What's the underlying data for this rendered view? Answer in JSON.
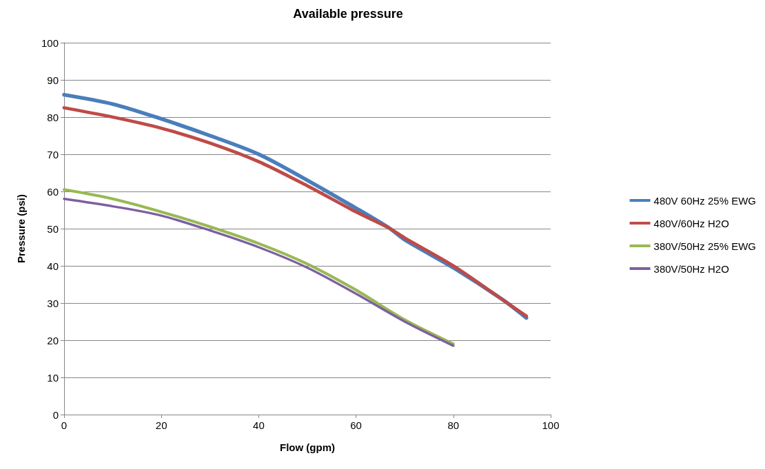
{
  "chart_data": {
    "type": "line",
    "title": "Available pressure",
    "xlabel": "Flow (gpm)",
    "ylabel": "Pressure (psi)",
    "xlim": [
      0,
      100
    ],
    "xticks": [
      0,
      20,
      40,
      60,
      80,
      100
    ],
    "ylim": [
      0,
      100
    ],
    "yticks": [
      0,
      10,
      20,
      30,
      40,
      50,
      60,
      70,
      80,
      90,
      100
    ],
    "grid": "y",
    "legend": "right",
    "marker": "none",
    "line_style": "solid",
    "series": [
      {
        "name": "480V 60Hz 25% EWG",
        "color": "#4a7ebb",
        "x": [
          0,
          10,
          20,
          30,
          40,
          50,
          60,
          67,
          70,
          80,
          90,
          95
        ],
        "values": [
          86,
          83.5,
          79.5,
          75,
          70,
          63,
          55.5,
          50,
          47,
          39.5,
          31,
          26
        ]
      },
      {
        "name": "480V/60Hz H2O",
        "color": "#be4b48",
        "x": [
          0,
          10,
          20,
          30,
          40,
          50,
          60,
          67,
          70,
          80,
          90,
          95
        ],
        "values": [
          82.5,
          80,
          77,
          73,
          68,
          61.5,
          54.5,
          50,
          47.5,
          40,
          31,
          26.5
        ]
      },
      {
        "name": "380V/50Hz 25% EWG",
        "color": "#98b954",
        "x": [
          0,
          10,
          20,
          30,
          40,
          50,
          60,
          70,
          80
        ],
        "values": [
          60.5,
          58,
          54.5,
          50.5,
          46,
          40.5,
          33.5,
          25.5,
          19
        ]
      },
      {
        "name": "380V/50Hz H2O",
        "color": "#7d60a0",
        "x": [
          0,
          10,
          20,
          30,
          40,
          50,
          60,
          70,
          80
        ],
        "values": [
          58,
          56,
          53.5,
          49.5,
          45,
          39.5,
          32.5,
          25,
          18.5
        ]
      }
    ]
  }
}
